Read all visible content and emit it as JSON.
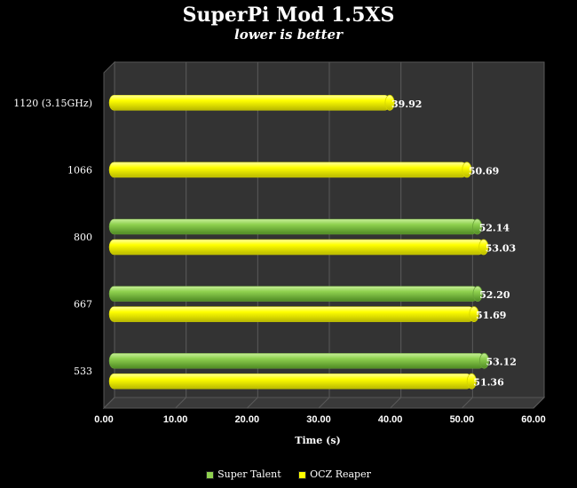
{
  "chart_data": {
    "type": "bar",
    "orientation": "horizontal",
    "title": "SuperPi Mod 1.5XS",
    "subtitle": "lower is better",
    "xlabel": "Time (s)",
    "ylabel": "",
    "xlim": [
      0,
      60
    ],
    "x_ticks": [
      "0.00",
      "10.00",
      "20.00",
      "30.00",
      "40.00",
      "50.00",
      "60.00"
    ],
    "categories": [
      "1120 (3.15GHz)",
      "1066",
      "800",
      "667",
      "533"
    ],
    "series": [
      {
        "name": "Super Talent",
        "color": "#8fd14f",
        "values": [
          null,
          null,
          52.14,
          52.2,
          53.12
        ],
        "labels": [
          "",
          "",
          "52.14",
          "52.20",
          "53.12"
        ]
      },
      {
        "name": "OCZ Reaper",
        "color": "#ffff00",
        "values": [
          39.92,
          50.69,
          53.03,
          51.69,
          51.36
        ],
        "labels": [
          "39.92",
          "50.69",
          "53.03",
          "51.69",
          "51.36"
        ]
      }
    ],
    "grid": true,
    "legend_position": "bottom",
    "background": "#333333"
  }
}
